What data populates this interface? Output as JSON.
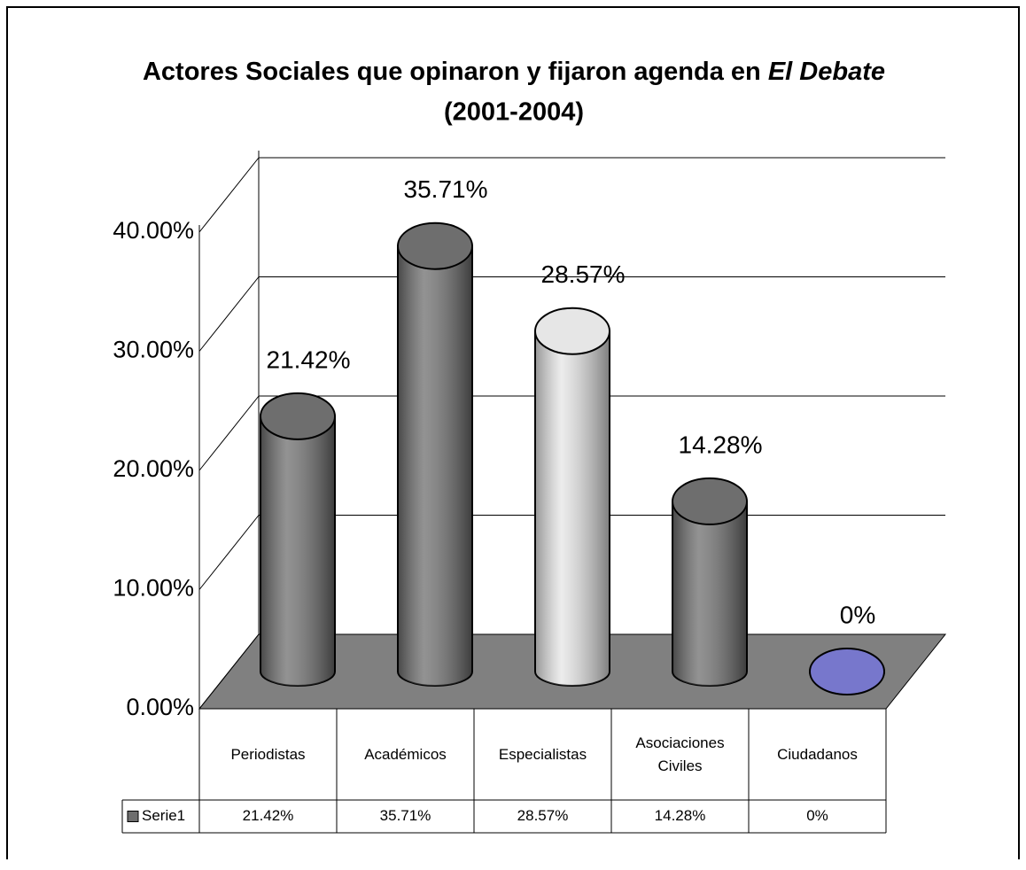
{
  "chart_data": {
    "type": "bar3d",
    "title_parts": [
      "Actores Sociales que opinaron y fijaron agenda en",
      "El Debate"
    ],
    "subtitle": "(2001-2004)",
    "categories": [
      "Periodistas",
      "Académicos",
      "Especialistas",
      "Asociaciones Civiles",
      "Ciudadanos"
    ],
    "series": [
      {
        "name": "Serie1",
        "color": "#6e6e6e",
        "colors": [
          "#6e6e6e",
          "#6e6e6e",
          "#e6e6e6",
          "#6e6e6e",
          "#7777cc"
        ],
        "values": [
          21.42,
          35.71,
          28.57,
          14.28,
          0
        ],
        "value_labels": [
          "21.42%",
          "35.71%",
          "28.57%",
          "14.28%",
          "0%"
        ]
      }
    ],
    "ylim": [
      0,
      40
    ],
    "yticks": [
      {
        "value": 0,
        "label": "0.00%"
      },
      {
        "value": 10,
        "label": "10.00%"
      },
      {
        "value": 20,
        "label": "20.00%"
      },
      {
        "value": 30,
        "label": "30.00%"
      },
      {
        "value": 40,
        "label": "40.00%"
      }
    ],
    "grid": true,
    "floor_color": "#808080",
    "data_table": true
  }
}
